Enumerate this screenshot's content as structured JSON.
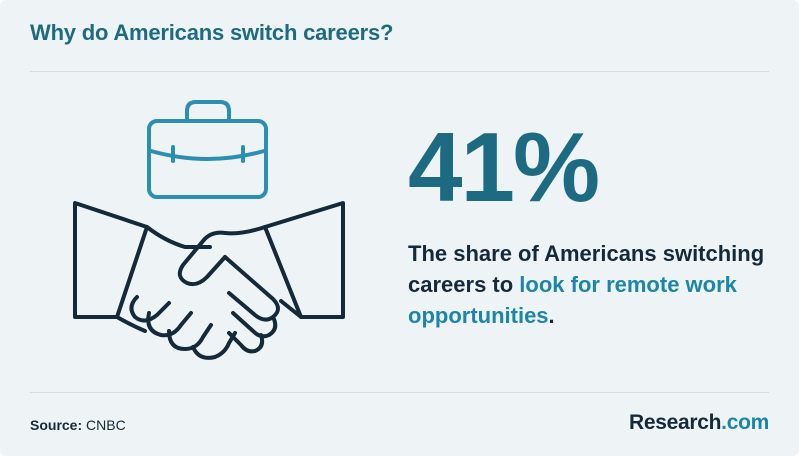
{
  "header": {
    "title": "Why do Americans switch careers?"
  },
  "stat": {
    "value": "41%",
    "description_part1": "The share of Americans switching careers to ",
    "description_highlight": "look for remote work opportunities",
    "description_end": "."
  },
  "footer": {
    "source_label": "Source:",
    "source_value": " CNBC",
    "brand_name": "Research",
    "brand_tld": ".com"
  },
  "colors": {
    "background": "#eef3f6",
    "accent_teal": "#1c6b82",
    "highlight_blue": "#1c86a8",
    "icon_teal": "#2b8fb3",
    "icon_navy": "#142a3a",
    "text_dark": "#142a3a"
  },
  "icons": [
    "briefcase-icon",
    "handshake-icon"
  ]
}
